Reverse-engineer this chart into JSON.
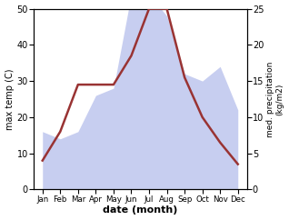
{
  "months": [
    "Jan",
    "Feb",
    "Mar",
    "Apr",
    "May",
    "Jun",
    "Jul",
    "Aug",
    "Sep",
    "Oct",
    "Nov",
    "Dec"
  ],
  "month_positions": [
    1,
    2,
    3,
    4,
    5,
    6,
    7,
    8,
    9,
    10,
    11,
    12
  ],
  "temperature": [
    8,
    16,
    29,
    29,
    29,
    37,
    50,
    50,
    31,
    20,
    13,
    7
  ],
  "precipitation": [
    8,
    7,
    8,
    13,
    14,
    27,
    27,
    24,
    16,
    15,
    17,
    11
  ],
  "temp_ylim": [
    0,
    50
  ],
  "precip_ylim": [
    0,
    25
  ],
  "temp_color": "#993333",
  "precip_color": "#aab4e8",
  "precip_fill_alpha": 0.65,
  "temp_linewidth": 1.8,
  "xlabel": "date (month)",
  "ylabel_left": "max temp (C)",
  "ylabel_right": "med. precipitation\n(kg/m2)",
  "yticks_left": [
    0,
    10,
    20,
    30,
    40,
    50
  ],
  "yticks_right": [
    0,
    5,
    10,
    15,
    20,
    25
  ],
  "background_color": "#ffffff"
}
